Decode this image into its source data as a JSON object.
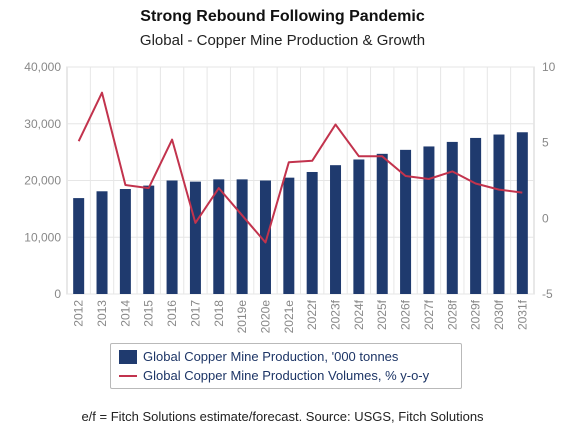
{
  "title": "Strong Rebound Following Pandemic",
  "subtitle": "Global - Copper Mine Production & Growth",
  "footnote": "e/f = Fitch Solutions estimate/forecast. Source: USGS, Fitch Solutions",
  "colors": {
    "bar": "#1f3a6e",
    "line": "#c2334d",
    "axis_text": "#888888",
    "grid": "#e6e6e6"
  },
  "chart_data": {
    "type": "bar",
    "categories": [
      "2012",
      "2013",
      "2014",
      "2015",
      "2016",
      "2017",
      "2018",
      "2019e",
      "2020e",
      "2021e",
      "2022f",
      "2023f",
      "2024f",
      "2025f",
      "2026f",
      "2027f",
      "2028f",
      "2029f",
      "2030f",
      "2031f"
    ],
    "series": [
      {
        "name": "Global Copper Mine Production, '000 tonnes",
        "type": "bar",
        "axis": "left",
        "values": [
          16900,
          18100,
          18500,
          19100,
          20000,
          19800,
          20200,
          20200,
          20000,
          20500,
          21500,
          22700,
          23700,
          24700,
          25400,
          26000,
          26800,
          27500,
          28100,
          28500
        ]
      },
      {
        "name": "Global Copper Mine Production Volumes, % y-o-y",
        "type": "line",
        "axis": "right",
        "values": [
          5.1,
          8.3,
          2.2,
          2.0,
          5.2,
          -0.3,
          2.0,
          0.2,
          -1.6,
          3.7,
          3.8,
          6.2,
          4.1,
          4.1,
          2.8,
          2.6,
          3.1,
          2.3,
          1.9,
          1.7
        ]
      }
    ],
    "left_axis": {
      "ylim": [
        0,
        40000
      ],
      "ticks": [
        "0",
        "10,000",
        "20,000",
        "30,000",
        "40,000"
      ]
    },
    "right_axis": {
      "ylim": [
        -5,
        10
      ],
      "ticks": [
        "-5",
        "0",
        "5",
        "10"
      ]
    },
    "legend_position": "bottom",
    "grid": true
  }
}
